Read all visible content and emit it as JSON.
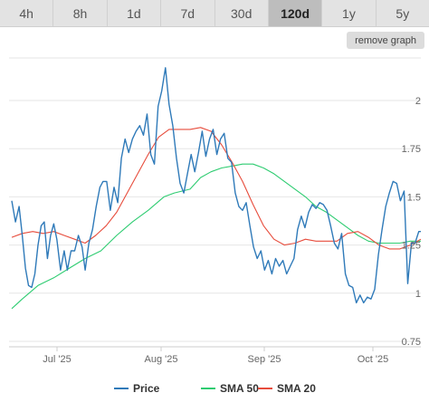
{
  "tabs": [
    {
      "label": "4h"
    },
    {
      "label": "8h"
    },
    {
      "label": "1d"
    },
    {
      "label": "7d"
    },
    {
      "label": "30d"
    },
    {
      "label": "120d"
    },
    {
      "label": "1y"
    },
    {
      "label": "5y"
    }
  ],
  "active_tab": "120d",
  "remove_graph_label": "remove graph",
  "chart_data": {
    "type": "line",
    "x_labels": [
      "Jul '25",
      "Aug '25",
      "Sep '25",
      "Oct '25"
    ],
    "y_ticks": [
      "2",
      "1.75",
      "1.5",
      "1.25",
      "1",
      "0.75"
    ],
    "y_tick_values": [
      2,
      1.75,
      1.5,
      1.25,
      1,
      0.75
    ],
    "ylim": [
      0.75,
      2
    ],
    "grid": "horizontal",
    "legend_position": "bottom",
    "series": [
      {
        "name": "Price",
        "color": "#2f7ab9",
        "points": [
          [
            0,
            1.48
          ],
          [
            0.7,
            1.37
          ],
          [
            1.4,
            1.45
          ],
          [
            2,
            1.3
          ],
          [
            2.6,
            1.13
          ],
          [
            3.2,
            1.04
          ],
          [
            3.8,
            1.03
          ],
          [
            4.4,
            1.1
          ],
          [
            5,
            1.25
          ],
          [
            5.6,
            1.35
          ],
          [
            6.2,
            1.37
          ],
          [
            6.8,
            1.18
          ],
          [
            7.4,
            1.3
          ],
          [
            8,
            1.36
          ],
          [
            8.6,
            1.28
          ],
          [
            9.3,
            1.12
          ],
          [
            10,
            1.22
          ],
          [
            10.6,
            1.12
          ],
          [
            11.3,
            1.22
          ],
          [
            12,
            1.22
          ],
          [
            12.7,
            1.3
          ],
          [
            13.4,
            1.24
          ],
          [
            14,
            1.12
          ],
          [
            14.7,
            1.26
          ],
          [
            15.4,
            1.33
          ],
          [
            16.1,
            1.45
          ],
          [
            16.8,
            1.55
          ],
          [
            17.4,
            1.58
          ],
          [
            18.1,
            1.58
          ],
          [
            18.8,
            1.43
          ],
          [
            19.5,
            1.55
          ],
          [
            20.2,
            1.47
          ],
          [
            20.9,
            1.7
          ],
          [
            21.6,
            1.8
          ],
          [
            22.3,
            1.73
          ],
          [
            23,
            1.8
          ],
          [
            23.7,
            1.84
          ],
          [
            24.4,
            1.87
          ],
          [
            25.1,
            1.82
          ],
          [
            25.8,
            1.93
          ],
          [
            26.5,
            1.72
          ],
          [
            27.2,
            1.67
          ],
          [
            27.9,
            1.97
          ],
          [
            28.6,
            2.05
          ],
          [
            29.3,
            2.17
          ],
          [
            30,
            1.98
          ],
          [
            30.7,
            1.87
          ],
          [
            31.4,
            1.7
          ],
          [
            32.1,
            1.57
          ],
          [
            32.8,
            1.52
          ],
          [
            33.5,
            1.62
          ],
          [
            34.2,
            1.72
          ],
          [
            34.9,
            1.63
          ],
          [
            35.6,
            1.73
          ],
          [
            36.3,
            1.84
          ],
          [
            37,
            1.71
          ],
          [
            37.7,
            1.8
          ],
          [
            38.4,
            1.85
          ],
          [
            39.1,
            1.72
          ],
          [
            39.8,
            1.8
          ],
          [
            40.5,
            1.83
          ],
          [
            41.2,
            1.7
          ],
          [
            41.9,
            1.68
          ],
          [
            42.6,
            1.52
          ],
          [
            43.3,
            1.45
          ],
          [
            44,
            1.43
          ],
          [
            44.7,
            1.47
          ],
          [
            45.4,
            1.35
          ],
          [
            46.1,
            1.24
          ],
          [
            46.8,
            1.18
          ],
          [
            47.5,
            1.22
          ],
          [
            48.2,
            1.12
          ],
          [
            48.9,
            1.17
          ],
          [
            49.6,
            1.1
          ],
          [
            50.3,
            1.18
          ],
          [
            51,
            1.14
          ],
          [
            51.7,
            1.17
          ],
          [
            52.4,
            1.1
          ],
          [
            53.1,
            1.14
          ],
          [
            53.8,
            1.18
          ],
          [
            54.5,
            1.33
          ],
          [
            55.2,
            1.4
          ],
          [
            55.9,
            1.34
          ],
          [
            56.6,
            1.42
          ],
          [
            57.3,
            1.46
          ],
          [
            58,
            1.44
          ],
          [
            58.7,
            1.47
          ],
          [
            59.4,
            1.46
          ],
          [
            60.1,
            1.43
          ],
          [
            60.8,
            1.35
          ],
          [
            61.5,
            1.26
          ],
          [
            62.2,
            1.23
          ],
          [
            62.9,
            1.31
          ],
          [
            63.6,
            1.1
          ],
          [
            64.3,
            1.04
          ],
          [
            65,
            1.03
          ],
          [
            65.7,
            0.95
          ],
          [
            66.4,
            0.99
          ],
          [
            67.1,
            0.95
          ],
          [
            67.8,
            0.98
          ],
          [
            68.5,
            0.97
          ],
          [
            69.2,
            1.02
          ],
          [
            69.9,
            1.2
          ],
          [
            70.6,
            1.33
          ],
          [
            71.3,
            1.45
          ],
          [
            72,
            1.52
          ],
          [
            72.7,
            1.58
          ],
          [
            73.4,
            1.57
          ],
          [
            74.1,
            1.48
          ],
          [
            74.8,
            1.53
          ],
          [
            75.5,
            1.05
          ],
          [
            76.2,
            1.26
          ],
          [
            76.9,
            1.26
          ],
          [
            77.6,
            1.32
          ],
          [
            78,
            1.32
          ]
        ]
      },
      {
        "name": "SMA 50",
        "color": "#2ecc71",
        "points": [
          [
            0,
            0.92
          ],
          [
            2,
            0.97
          ],
          [
            5,
            1.04
          ],
          [
            8,
            1.08
          ],
          [
            11,
            1.13
          ],
          [
            14,
            1.18
          ],
          [
            17,
            1.22
          ],
          [
            20,
            1.3
          ],
          [
            23,
            1.37
          ],
          [
            26,
            1.43
          ],
          [
            29,
            1.5
          ],
          [
            31,
            1.52
          ],
          [
            34,
            1.54
          ],
          [
            36,
            1.6
          ],
          [
            38,
            1.63
          ],
          [
            40,
            1.65
          ],
          [
            42,
            1.66
          ],
          [
            44,
            1.67
          ],
          [
            46,
            1.67
          ],
          [
            48,
            1.65
          ],
          [
            50,
            1.62
          ],
          [
            52,
            1.58
          ],
          [
            54,
            1.54
          ],
          [
            56,
            1.5
          ],
          [
            58,
            1.45
          ],
          [
            60,
            1.42
          ],
          [
            62,
            1.38
          ],
          [
            64,
            1.34
          ],
          [
            66,
            1.3
          ],
          [
            68,
            1.27
          ],
          [
            70,
            1.26
          ],
          [
            72,
            1.26
          ],
          [
            74,
            1.26
          ],
          [
            76,
            1.27
          ],
          [
            78,
            1.27
          ]
        ]
      },
      {
        "name": "SMA 20",
        "color": "#e74c3c",
        "points": [
          [
            0,
            1.29
          ],
          [
            2,
            1.31
          ],
          [
            4,
            1.32
          ],
          [
            6,
            1.31
          ],
          [
            8,
            1.32
          ],
          [
            10,
            1.3
          ],
          [
            12,
            1.28
          ],
          [
            14,
            1.26
          ],
          [
            16,
            1.3
          ],
          [
            18,
            1.35
          ],
          [
            20,
            1.42
          ],
          [
            22,
            1.52
          ],
          [
            24,
            1.62
          ],
          [
            26,
            1.72
          ],
          [
            28,
            1.81
          ],
          [
            30,
            1.85
          ],
          [
            32,
            1.85
          ],
          [
            34,
            1.85
          ],
          [
            36,
            1.86
          ],
          [
            38,
            1.84
          ],
          [
            40,
            1.77
          ],
          [
            42,
            1.68
          ],
          [
            44,
            1.58
          ],
          [
            46,
            1.46
          ],
          [
            48,
            1.35
          ],
          [
            50,
            1.28
          ],
          [
            52,
            1.25
          ],
          [
            54,
            1.26
          ],
          [
            56,
            1.28
          ],
          [
            58,
            1.27
          ],
          [
            60,
            1.27
          ],
          [
            62,
            1.27
          ],
          [
            64,
            1.31
          ],
          [
            66,
            1.32
          ],
          [
            68,
            1.29
          ],
          [
            70,
            1.25
          ],
          [
            72,
            1.23
          ],
          [
            74,
            1.23
          ],
          [
            76,
            1.25
          ],
          [
            78,
            1.28
          ]
        ]
      }
    ]
  },
  "legend": [
    {
      "label": "Price",
      "color": "#2f7ab9"
    },
    {
      "label": "SMA 50",
      "color": "#2ecc71"
    },
    {
      "label": "SMA 20",
      "color": "#e74c3c"
    }
  ]
}
